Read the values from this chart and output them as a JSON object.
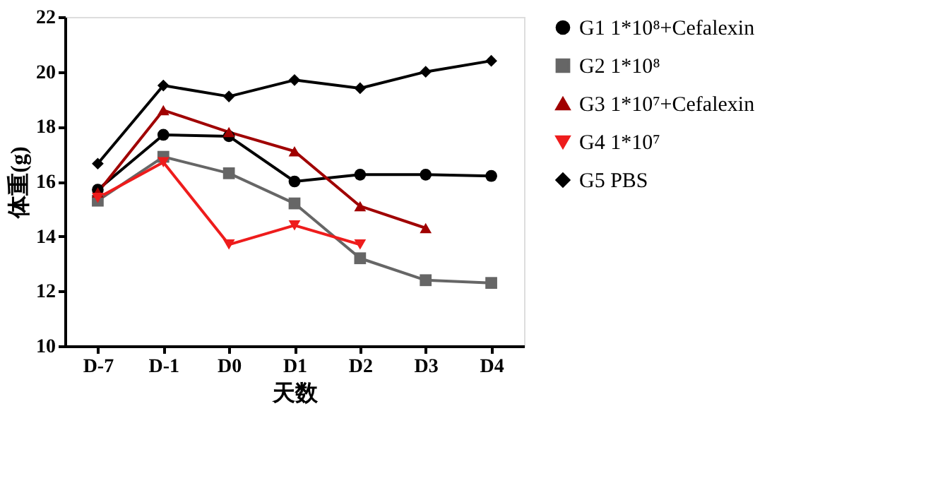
{
  "chart_data": {
    "type": "line",
    "xlabel": "天数",
    "ylabel": "体重(g)",
    "categories": [
      "D-7",
      "D-1",
      "D0",
      "D1",
      "D2",
      "D3",
      "D4"
    ],
    "ylim": [
      10,
      22
    ],
    "yticks": [
      10,
      12,
      14,
      16,
      18,
      20,
      22
    ],
    "grid": false,
    "legend": "right",
    "series": [
      {
        "name": "G1  1*10⁸+Cefalexin",
        "color": "#000000",
        "marker": "circle",
        "values": [
          15.7,
          17.7,
          17.65,
          16.0,
          16.25,
          16.25,
          16.2
        ]
      },
      {
        "name": "G2  1*10⁸",
        "color": "#666666",
        "marker": "square",
        "values": [
          15.3,
          16.9,
          16.3,
          15.2,
          13.2,
          12.4,
          12.3
        ]
      },
      {
        "name": "G3  1*10⁷+Cefalexin",
        "color": "#a00000",
        "marker": "triangle",
        "values": [
          15.6,
          18.6,
          17.8,
          17.1,
          15.1,
          14.3,
          null
        ]
      },
      {
        "name": "G4  1*10⁷",
        "color": "#ee1c1c",
        "marker": "triangle-down",
        "values": [
          15.4,
          16.7,
          13.7,
          14.4,
          13.7,
          null,
          null
        ]
      },
      {
        "name": "G5  PBS",
        "color": "#000000",
        "marker": "diamond",
        "values": [
          16.65,
          19.5,
          19.1,
          19.7,
          19.4,
          20.0,
          20.4
        ]
      }
    ]
  }
}
